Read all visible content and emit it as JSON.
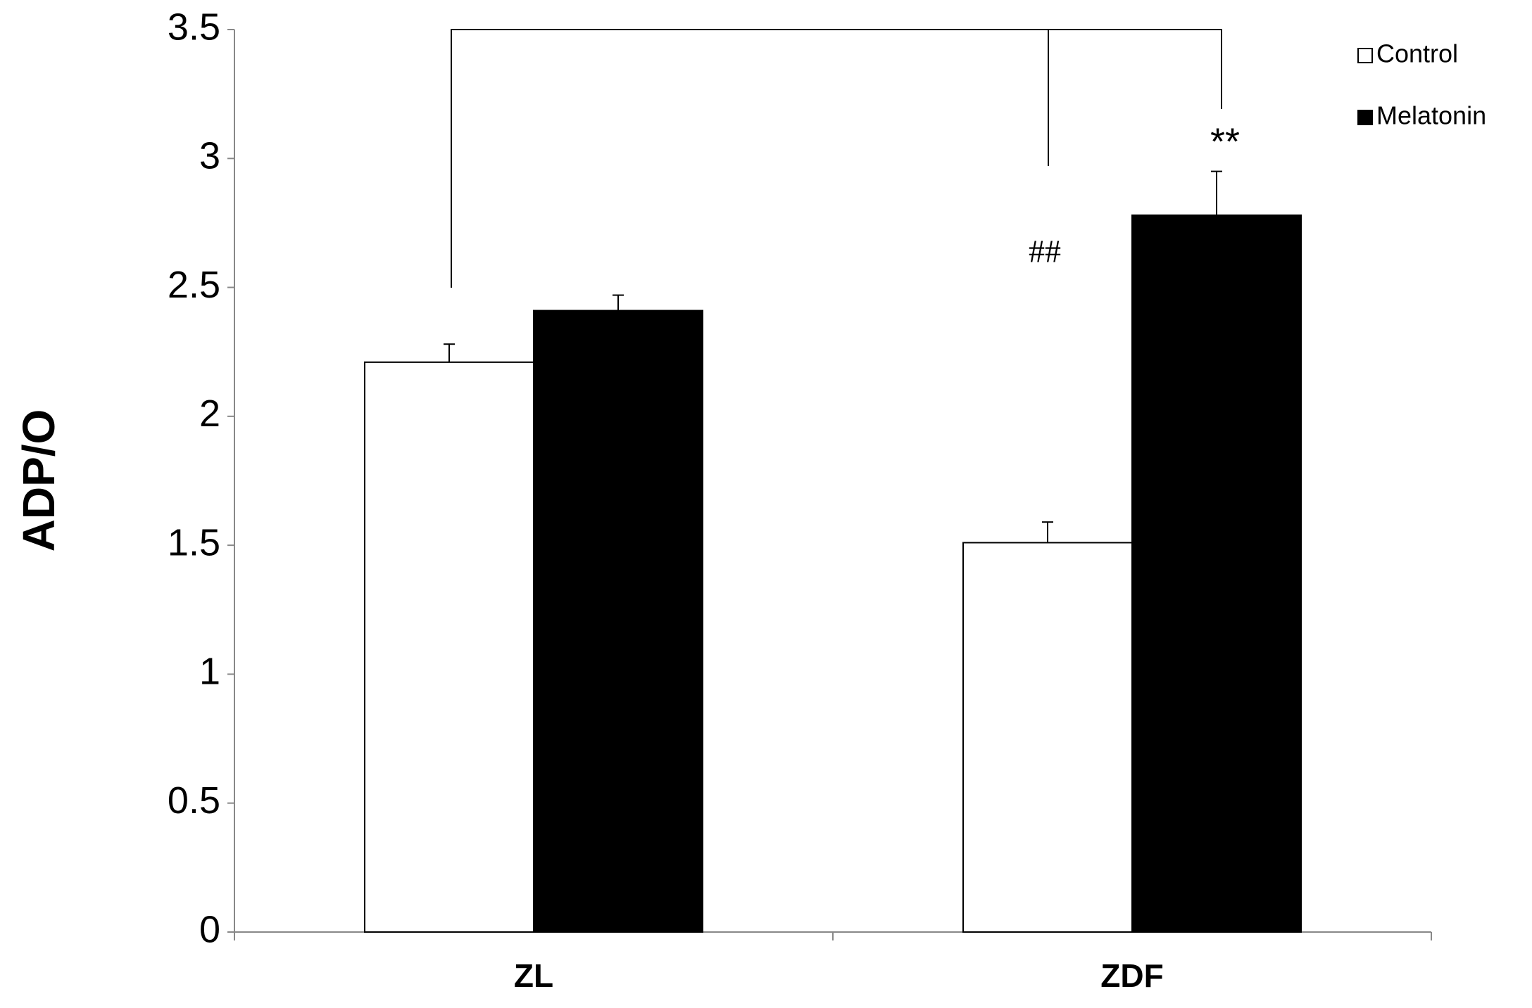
{
  "chart_data": {
    "type": "bar",
    "y_label": "ADP/O",
    "categories": [
      "ZL",
      "ZDF"
    ],
    "series": [
      {
        "name": "Control",
        "color": "#ffffff",
        "values": [
          2.21,
          1.51
        ],
        "errors": [
          0.07,
          0.08
        ]
      },
      {
        "name": "Melatonin",
        "color": "#000000",
        "values": [
          2.41,
          2.78
        ],
        "errors": [
          0.06,
          0.17
        ]
      }
    ],
    "ylim": [
      0,
      3.5
    ],
    "yticks": [
      0,
      0.5,
      1,
      1.5,
      2,
      2.5,
      3,
      3.5
    ],
    "annotations": [
      "##",
      "**"
    ],
    "legend": "top-right"
  }
}
